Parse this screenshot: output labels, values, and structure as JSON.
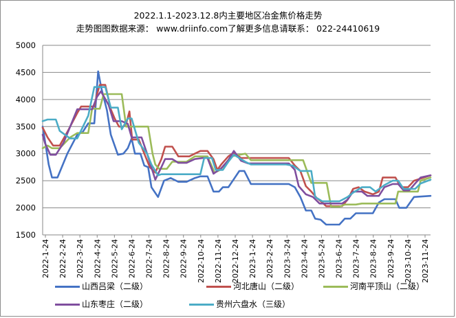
{
  "chart_data": {
    "type": "line",
    "title": "2022.1.1-2023.12.8内主要地区冶金焦价格走势",
    "subtitle": "走势图图数据来源：  www.driinfo.com了解更多信息请联系：  022-24410619",
    "xlabel": "",
    "ylabel": "",
    "ylim": [
      1500,
      5000
    ],
    "yticks": [
      1500,
      2000,
      2500,
      3000,
      3500,
      4000,
      4500,
      5000
    ],
    "grid": true,
    "legend_position": "bottom",
    "x_tick_labels": [
      "2022-1-24",
      "2022-2-24",
      "2022-3-24",
      "2022-4-24",
      "2022-5-24",
      "2022-6-24",
      "2022-7-24",
      "2022-8-24",
      "2022-9-24",
      "2022-10-24",
      "2022-11-24",
      "2022-12-24",
      "2023-1-24",
      "2023-2-24",
      "2023-3-24",
      "2023-4-24",
      "2023-5-24",
      "2023-6-24",
      "2023-7-24",
      "2023-8-24",
      "2023-9-24",
      "2023-10-24",
      "2023-11-24"
    ],
    "x_start": "2022-01-01",
    "x_end": "2023-12-08",
    "series": [
      {
        "name": "山西吕梁（二级）",
        "color": "#4472c4",
        "points": [
          [
            "2022-01-01",
            3500
          ],
          [
            "2022-01-05",
            3250
          ],
          [
            "2022-01-12",
            2800
          ],
          [
            "2022-01-18",
            2560
          ],
          [
            "2022-01-28",
            2560
          ],
          [
            "2022-02-15",
            3000
          ],
          [
            "2022-03-05",
            3350
          ],
          [
            "2022-03-15",
            3400
          ],
          [
            "2022-03-25",
            3560
          ],
          [
            "2022-04-05",
            3560
          ],
          [
            "2022-04-12",
            4520
          ],
          [
            "2022-04-18",
            4200
          ],
          [
            "2022-04-28",
            3800
          ],
          [
            "2022-05-05",
            3350
          ],
          [
            "2022-05-18",
            2980
          ],
          [
            "2022-05-28",
            3000
          ],
          [
            "2022-06-05",
            3100
          ],
          [
            "2022-06-12",
            3280
          ],
          [
            "2022-06-18",
            3000
          ],
          [
            "2022-06-28",
            3000
          ],
          [
            "2022-07-05",
            2780
          ],
          [
            "2022-07-12",
            2750
          ],
          [
            "2022-07-18",
            2380
          ],
          [
            "2022-07-30",
            2200
          ],
          [
            "2022-08-10",
            2500
          ],
          [
            "2022-08-22",
            2550
          ],
          [
            "2022-09-05",
            2480
          ],
          [
            "2022-09-20",
            2480
          ],
          [
            "2022-10-05",
            2550
          ],
          [
            "2022-10-15",
            2580
          ],
          [
            "2022-10-28",
            2580
          ],
          [
            "2022-11-08",
            2300
          ],
          [
            "2022-11-18",
            2300
          ],
          [
            "2022-11-25",
            2380
          ],
          [
            "2022-12-05",
            2380
          ],
          [
            "2022-12-15",
            2530
          ],
          [
            "2022-12-25",
            2680
          ],
          [
            "2023-01-03",
            2680
          ],
          [
            "2023-01-15",
            2440
          ],
          [
            "2023-03-25",
            2440
          ],
          [
            "2023-04-05",
            2380
          ],
          [
            "2023-04-15",
            2200
          ],
          [
            "2023-04-25",
            1950
          ],
          [
            "2023-05-05",
            1950
          ],
          [
            "2023-05-12",
            1800
          ],
          [
            "2023-05-22",
            1780
          ],
          [
            "2023-06-01",
            1690
          ],
          [
            "2023-06-25",
            1690
          ],
          [
            "2023-07-05",
            1800
          ],
          [
            "2023-07-15",
            1800
          ],
          [
            "2023-07-25",
            1900
          ],
          [
            "2023-08-25",
            1900
          ],
          [
            "2023-09-05",
            2100
          ],
          [
            "2023-09-15",
            2160
          ],
          [
            "2023-10-05",
            2160
          ],
          [
            "2023-10-12",
            2000
          ],
          [
            "2023-10-25",
            2000
          ],
          [
            "2023-11-08",
            2200
          ],
          [
            "2023-12-08",
            2220
          ]
        ]
      },
      {
        "name": "河北唐山（二级）",
        "color": "#c0504d",
        "points": [
          [
            "2022-01-01",
            3480
          ],
          [
            "2022-01-10",
            3300
          ],
          [
            "2022-01-20",
            3150
          ],
          [
            "2022-02-01",
            3150
          ],
          [
            "2022-02-15",
            3400
          ],
          [
            "2022-03-05",
            3750
          ],
          [
            "2022-03-12",
            3870
          ],
          [
            "2022-03-25",
            3870
          ],
          [
            "2022-04-05",
            3870
          ],
          [
            "2022-04-10",
            4100
          ],
          [
            "2022-04-15",
            4270
          ],
          [
            "2022-04-25",
            4270
          ],
          [
            "2022-05-05",
            3820
          ],
          [
            "2022-05-12",
            3650
          ],
          [
            "2022-05-20",
            3500
          ],
          [
            "2022-05-28",
            3500
          ],
          [
            "2022-06-02",
            3550
          ],
          [
            "2022-06-08",
            3780
          ],
          [
            "2022-06-13",
            3260
          ],
          [
            "2022-06-25",
            3260
          ],
          [
            "2022-07-05",
            3000
          ],
          [
            "2022-07-15",
            2750
          ],
          [
            "2022-07-25",
            2650
          ],
          [
            "2022-08-05",
            2900
          ],
          [
            "2022-08-12",
            3130
          ],
          [
            "2022-08-25",
            3130
          ],
          [
            "2022-09-05",
            2950
          ],
          [
            "2022-09-25",
            2950
          ],
          [
            "2022-10-05",
            3000
          ],
          [
            "2022-10-15",
            3050
          ],
          [
            "2022-10-28",
            3050
          ],
          [
            "2022-11-08",
            2900
          ],
          [
            "2022-11-15",
            2700
          ],
          [
            "2022-11-22",
            2800
          ],
          [
            "2022-12-05",
            2950
          ],
          [
            "2022-12-15",
            3020
          ],
          [
            "2022-12-28",
            2920
          ],
          [
            "2023-03-25",
            2920
          ],
          [
            "2023-04-05",
            2780
          ],
          [
            "2023-04-15",
            2680
          ],
          [
            "2023-04-25",
            2400
          ],
          [
            "2023-05-05",
            2300
          ],
          [
            "2023-05-15",
            2180
          ],
          [
            "2023-05-25",
            2100
          ],
          [
            "2023-06-01",
            2030
          ],
          [
            "2023-06-30",
            2030
          ],
          [
            "2023-07-10",
            2150
          ],
          [
            "2023-07-20",
            2350
          ],
          [
            "2023-07-30",
            2380
          ],
          [
            "2023-08-10",
            2300
          ],
          [
            "2023-08-25",
            2250
          ],
          [
            "2023-09-05",
            2300
          ],
          [
            "2023-09-12",
            2560
          ],
          [
            "2023-10-05",
            2560
          ],
          [
            "2023-10-15",
            2380
          ],
          [
            "2023-10-28",
            2380
          ],
          [
            "2023-11-08",
            2500
          ],
          [
            "2023-12-08",
            2600
          ]
        ]
      },
      {
        "name": "河南平顶山（二级）",
        "color": "#9bbb59",
        "points": [
          [
            "2022-01-01",
            3100
          ],
          [
            "2022-01-10",
            3150
          ],
          [
            "2022-01-18",
            3100
          ],
          [
            "2022-02-01",
            3100
          ],
          [
            "2022-02-20",
            3300
          ],
          [
            "2022-03-05",
            3380
          ],
          [
            "2022-03-25",
            3380
          ],
          [
            "2022-04-01",
            3830
          ],
          [
            "2022-04-15",
            3830
          ],
          [
            "2022-04-22",
            4100
          ],
          [
            "2022-05-25",
            4100
          ],
          [
            "2022-06-02",
            3500
          ],
          [
            "2022-07-12",
            3500
          ],
          [
            "2022-07-20",
            3000
          ],
          [
            "2022-07-25",
            2800
          ],
          [
            "2022-08-01",
            2720
          ],
          [
            "2022-08-15",
            2720
          ],
          [
            "2022-08-25",
            2850
          ],
          [
            "2022-09-05",
            2850
          ],
          [
            "2022-09-20",
            2850
          ],
          [
            "2022-10-05",
            2950
          ],
          [
            "2022-10-28",
            2950
          ],
          [
            "2022-11-10",
            2650
          ],
          [
            "2022-11-20",
            2700
          ],
          [
            "2022-12-01",
            2830
          ],
          [
            "2022-12-10",
            2950
          ],
          [
            "2023-01-05",
            3000
          ],
          [
            "2023-01-15",
            2880
          ],
          [
            "2023-04-20",
            2880
          ],
          [
            "2023-05-05",
            2460
          ],
          [
            "2023-06-02",
            2460
          ],
          [
            "2023-06-10",
            2020
          ],
          [
            "2023-06-25",
            2020
          ],
          [
            "2023-07-05",
            2060
          ],
          [
            "2023-07-25",
            2060
          ],
          [
            "2023-08-05",
            2080
          ],
          [
            "2023-10-05",
            2080
          ],
          [
            "2023-10-10",
            2300
          ],
          [
            "2023-11-15",
            2300
          ],
          [
            "2023-11-20",
            2500
          ],
          [
            "2023-12-08",
            2560
          ]
        ]
      },
      {
        "name": "山东枣庄（二级）",
        "color": "#7f4e9e",
        "points": [
          [
            "2022-01-01",
            3350
          ],
          [
            "2022-01-05",
            3200
          ],
          [
            "2022-01-15",
            2980
          ],
          [
            "2022-01-25",
            2980
          ],
          [
            "2022-02-08",
            3200
          ],
          [
            "2022-03-05",
            3820
          ],
          [
            "2022-03-20",
            3820
          ],
          [
            "2022-04-01",
            3820
          ],
          [
            "2022-04-10",
            4050
          ],
          [
            "2022-04-17",
            4150
          ],
          [
            "2022-05-01",
            3900
          ],
          [
            "2022-05-10",
            3600
          ],
          [
            "2022-05-25",
            3600
          ],
          [
            "2022-06-05",
            3550
          ],
          [
            "2022-06-12",
            3300
          ],
          [
            "2022-06-30",
            3300
          ],
          [
            "2022-07-10",
            3000
          ],
          [
            "2022-07-25",
            2520
          ],
          [
            "2022-08-05",
            2750
          ],
          [
            "2022-08-12",
            2900
          ],
          [
            "2022-08-25",
            2900
          ],
          [
            "2022-09-05",
            2830
          ],
          [
            "2022-09-20",
            2830
          ],
          [
            "2022-10-05",
            2900
          ],
          [
            "2022-10-20",
            2920
          ],
          [
            "2022-10-28",
            2920
          ],
          [
            "2022-11-08",
            2630
          ],
          [
            "2022-11-22",
            2730
          ],
          [
            "2022-12-05",
            2880
          ],
          [
            "2022-12-15",
            3050
          ],
          [
            "2022-12-28",
            2870
          ],
          [
            "2023-01-10",
            2820
          ],
          [
            "2023-03-25",
            2820
          ],
          [
            "2023-04-05",
            2700
          ],
          [
            "2023-04-12",
            2400
          ],
          [
            "2023-04-25",
            2250
          ],
          [
            "2023-05-08",
            2200
          ],
          [
            "2023-05-20",
            2080
          ],
          [
            "2023-06-30",
            2080
          ],
          [
            "2023-07-10",
            2150
          ],
          [
            "2023-07-20",
            2300
          ],
          [
            "2023-08-05",
            2300
          ],
          [
            "2023-08-15",
            2220
          ],
          [
            "2023-09-05",
            2220
          ],
          [
            "2023-09-15",
            2380
          ],
          [
            "2023-09-30",
            2440
          ],
          [
            "2023-10-10",
            2440
          ],
          [
            "2023-10-20",
            2320
          ],
          [
            "2023-10-30",
            2320
          ],
          [
            "2023-11-10",
            2450
          ],
          [
            "2023-11-20",
            2560
          ],
          [
            "2023-12-08",
            2600
          ]
        ]
      },
      {
        "name": "贵州六盘水（三级）",
        "color": "#4bacc6",
        "points": [
          [
            "2022-01-01",
            3600
          ],
          [
            "2022-01-10",
            3630
          ],
          [
            "2022-01-25",
            3630
          ],
          [
            "2022-02-01",
            3420
          ],
          [
            "2022-02-20",
            3280
          ],
          [
            "2022-03-05",
            3280
          ],
          [
            "2022-03-25",
            3700
          ],
          [
            "2022-04-05",
            4230
          ],
          [
            "2022-04-25",
            4230
          ],
          [
            "2022-05-05",
            3850
          ],
          [
            "2022-05-18",
            3850
          ],
          [
            "2022-05-25",
            3450
          ],
          [
            "2022-06-05",
            3650
          ],
          [
            "2022-06-12",
            3650
          ],
          [
            "2022-06-25",
            3200
          ],
          [
            "2022-07-10",
            3000
          ],
          [
            "2022-07-18",
            2800
          ],
          [
            "2022-07-30",
            2600
          ],
          [
            "2022-08-05",
            2620
          ],
          [
            "2022-10-15",
            2620
          ],
          [
            "2022-10-22",
            2920
          ],
          [
            "2022-11-05",
            2920
          ],
          [
            "2022-11-12",
            2700
          ],
          [
            "2022-11-25",
            2700
          ],
          [
            "2022-12-05",
            2850
          ],
          [
            "2022-12-15",
            2980
          ],
          [
            "2023-01-05",
            2850
          ],
          [
            "2023-01-15",
            2800
          ],
          [
            "2023-03-20",
            2800
          ],
          [
            "2023-04-01",
            2780
          ],
          [
            "2023-04-15",
            2680
          ],
          [
            "2023-05-05",
            2680
          ],
          [
            "2023-05-12",
            2200
          ],
          [
            "2023-05-25",
            2120
          ],
          [
            "2023-06-25",
            2120
          ],
          [
            "2023-07-10",
            2200
          ],
          [
            "2023-07-20",
            2280
          ],
          [
            "2023-08-05",
            2380
          ],
          [
            "2023-08-20",
            2380
          ],
          [
            "2023-08-30",
            2300
          ],
          [
            "2023-09-15",
            2420
          ],
          [
            "2023-09-30",
            2500
          ],
          [
            "2023-10-10",
            2500
          ],
          [
            "2023-10-20",
            2350
          ],
          [
            "2023-11-10",
            2350
          ],
          [
            "2023-11-20",
            2450
          ],
          [
            "2023-12-08",
            2520
          ]
        ]
      }
    ]
  }
}
